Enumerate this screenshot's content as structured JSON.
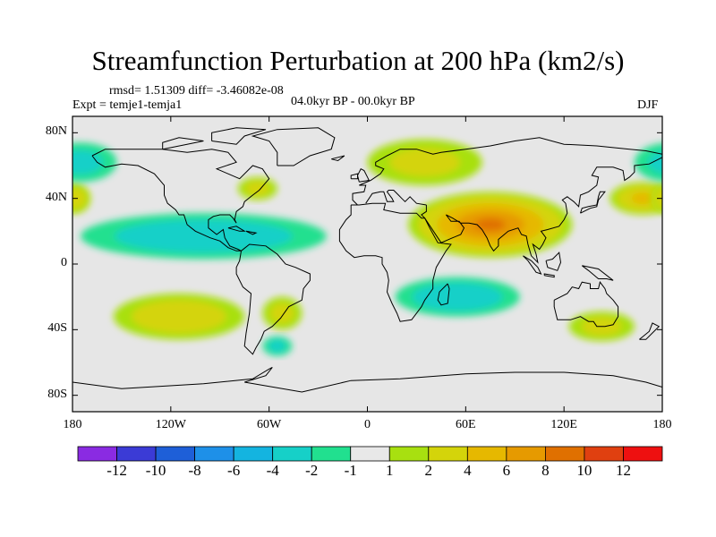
{
  "title": "Streamfunction Perturbation at 200 hPa (km2/s)",
  "stats": {
    "rmsd_label": "rmsd= 1.51309 diff= -3.46082e-08"
  },
  "experiment": "Expt = temje1-temja1",
  "period": "04.0kyr BP - 00.0kyr BP",
  "season": "DJF",
  "map": {
    "projection": "cylindrical equidistant",
    "lon_range": [
      -180,
      180
    ],
    "lat_range": [
      -90,
      90
    ],
    "y_ticks": [
      {
        "lat": 80,
        "label": "80N"
      },
      {
        "lat": 40,
        "label": "40N"
      },
      {
        "lat": 0,
        "label": "0"
      },
      {
        "lat": -40,
        "label": "40S"
      },
      {
        "lat": -80,
        "label": "80S"
      }
    ],
    "x_ticks": [
      {
        "lon": -180,
        "label": "180"
      },
      {
        "lon": -120,
        "label": "120W"
      },
      {
        "lon": -60,
        "label": "60W"
      },
      {
        "lon": 0,
        "label": "0"
      },
      {
        "lon": 60,
        "label": "60E"
      },
      {
        "lon": 120,
        "label": "120E"
      },
      {
        "lon": 180,
        "label": "180"
      }
    ],
    "background_color": "#e6e6e6"
  },
  "field_anomalies": [
    {
      "name": "asia-high",
      "lon": 75,
      "lat": 24,
      "rx": 50,
      "ry": 20,
      "peak": 8
    },
    {
      "name": "north-pacific-east-high",
      "lon": 168,
      "lat": 40,
      "rx": 20,
      "ry": 10,
      "peak": 4
    },
    {
      "name": "europe-high",
      "lon": 35,
      "lat": 62,
      "rx": 35,
      "ry": 14,
      "peak": 2
    },
    {
      "name": "south-pacific-high",
      "lon": -115,
      "lat": -32,
      "rx": 40,
      "ry": 14,
      "peak": 3
    },
    {
      "name": "australia-high",
      "lon": 143,
      "lat": -38,
      "rx": 20,
      "ry": 9,
      "peak": 2
    },
    {
      "name": "gulf-high",
      "lon": -67,
      "lat": 46,
      "rx": 12,
      "ry": 7,
      "peak": 2
    },
    {
      "name": "west-pacific-high",
      "lon": -178,
      "lat": 40,
      "rx": 9,
      "ry": 9,
      "peak": 3
    },
    {
      "name": "south-america-high",
      "lon": -52,
      "lat": -30,
      "rx": 12,
      "ry": 10,
      "peak": 2
    },
    {
      "name": "pacific-low",
      "lon": -100,
      "lat": 17,
      "rx": 75,
      "ry": 14,
      "peak": -3
    },
    {
      "name": "north-pacific-low",
      "lon": -175,
      "lat": 62,
      "rx": 22,
      "ry": 12,
      "peak": -2
    },
    {
      "name": "indian-ocean-low",
      "lon": 55,
      "lat": -20,
      "rx": 38,
      "ry": 12,
      "peak": -3
    },
    {
      "name": "south-atlantic-low",
      "lon": -55,
      "lat": -50,
      "rx": 9,
      "ry": 6,
      "peak": -2
    }
  ],
  "colorbar": {
    "colors": [
      "#8a2be2",
      "#3b3bd6",
      "#1e5fd8",
      "#1e90e8",
      "#14b4e0",
      "#16d0c8",
      "#21e08f",
      "#e8e8e8",
      "#a8e010",
      "#d4d40a",
      "#e6b800",
      "#e69a00",
      "#e07000",
      "#e04010",
      "#ee1010"
    ],
    "labels": [
      "-12",
      "-10",
      "-8",
      "-6",
      "-4",
      "-2",
      "-1",
      "1",
      "2",
      "4",
      "6",
      "8",
      "10",
      "12"
    ],
    "levels": [
      -12,
      -10,
      -8,
      -6,
      -4,
      -2,
      -1,
      1,
      2,
      4,
      6,
      8,
      10,
      12
    ]
  }
}
